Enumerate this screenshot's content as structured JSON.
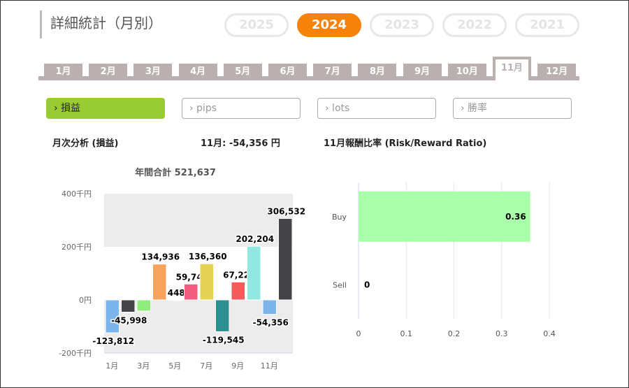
{
  "title": "詳細統計（月別）",
  "years": [
    {
      "label": "2025",
      "active": false
    },
    {
      "label": "2024",
      "active": true
    },
    {
      "label": "2023",
      "active": false
    },
    {
      "label": "2022",
      "active": false
    },
    {
      "label": "2021",
      "active": false
    }
  ],
  "months": [
    "1月",
    "2月",
    "3月",
    "4月",
    "5月",
    "6月",
    "7月",
    "8月",
    "9月",
    "10月",
    "11月",
    "12月"
  ],
  "active_month": 10,
  "metrics": [
    {
      "label": "› 損益",
      "active": true
    },
    {
      "label": "› pips",
      "active": false
    },
    {
      "label": "› lots",
      "active": false
    },
    {
      "label": "› 勝率",
      "active": false
    }
  ],
  "headings": {
    "monthly": "月次分析 (損益)",
    "month_value": "11月:  -54,356 円",
    "ratio": "11月報酬比率 (Risk/Reward Ratio)"
  },
  "chart_data": [
    {
      "type": "bar",
      "title": "年間合計 521,637",
      "ylim": [
        -200000,
        400000
      ],
      "yticks": [
        {
          "v": 400000,
          "label": "400千円"
        },
        {
          "v": 200000,
          "label": "200千円"
        },
        {
          "v": 0,
          "label": "0円"
        },
        {
          "v": -200000,
          "label": "-200千円"
        }
      ],
      "xticks": [
        "1月",
        "3月",
        "5月",
        "7月",
        "9月",
        "11月"
      ],
      "bars": [
        {
          "value": -123812,
          "label": "-123,812",
          "color": "#7cb5ec"
        },
        {
          "value": -45998,
          "label": "-45,998",
          "color": "#434348"
        },
        {
          "value": -42096,
          "label": "",
          "color": "#90ed7d"
        },
        {
          "value": 134936,
          "label": "134,936",
          "color": "#f7a35c"
        },
        {
          "value": 448,
          "label": "448",
          "color": "#8085e9"
        },
        {
          "value": 59744,
          "label": "59,744",
          "color": "#f15c80"
        },
        {
          "value": 136360,
          "label": "136,360",
          "color": "#e4d354"
        },
        {
          "value": -119545,
          "label": "-119,545",
          "color": "#2b908f"
        },
        {
          "value": 67220,
          "label": "67,220",
          "color": "#f45b5b"
        },
        {
          "value": 202204,
          "label": "202,204",
          "color": "#91e8e1"
        },
        {
          "value": -54356,
          "label": "-54,356",
          "color": "#7cb5ec"
        },
        {
          "value": 306532,
          "label": "306,532",
          "color": "#434348"
        }
      ]
    },
    {
      "type": "bar",
      "orientation": "horizontal",
      "categories": [
        "Buy",
        "Sell"
      ],
      "values": [
        0.36,
        0
      ],
      "labels": [
        "0.36",
        "0"
      ],
      "xlim": [
        0,
        0.4
      ],
      "xticks": [
        "0",
        "0.1",
        "0.2",
        "0.3",
        "0.4"
      ],
      "color": "#aaffaa"
    }
  ]
}
